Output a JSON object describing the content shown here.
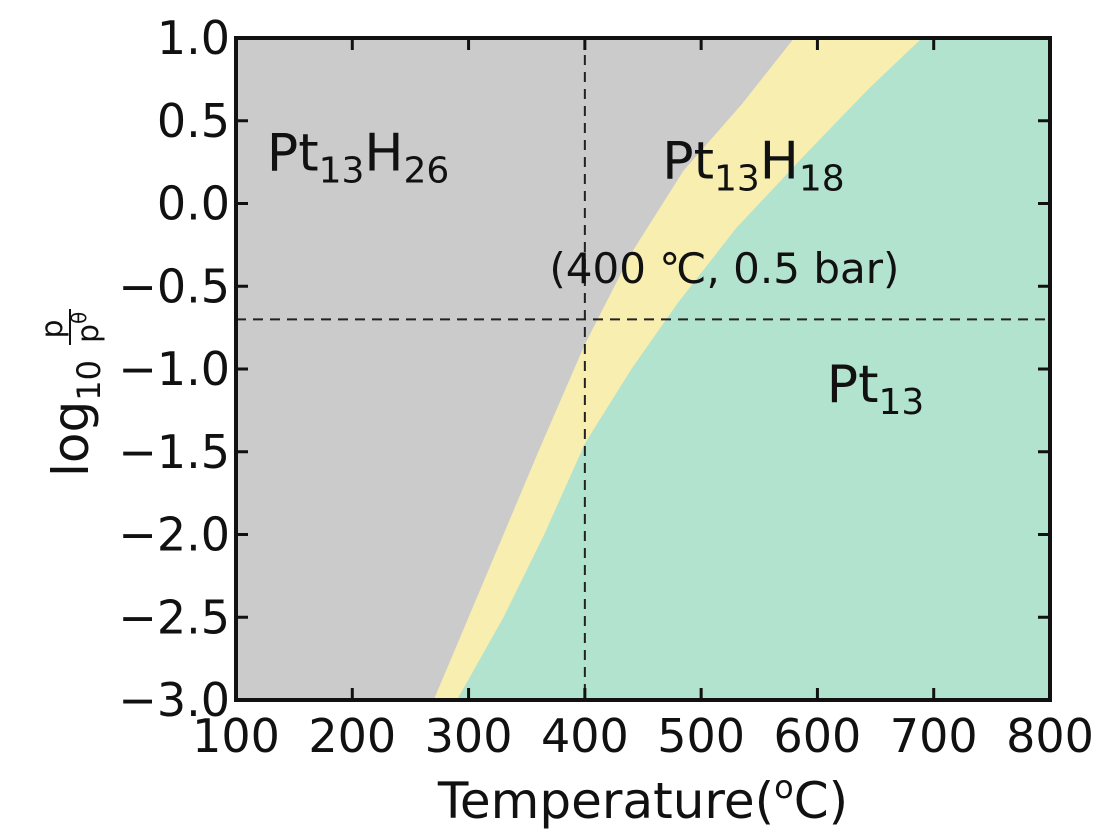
{
  "chart_data": {
    "type": "area",
    "xlabel_main": "Temperature(",
    "xlabel_sup": "o",
    "xlabel_end": "C)",
    "ylabel": {
      "prefix": "log",
      "sub": "10",
      "num": "p",
      "den": "p",
      "den_sup": "θ"
    },
    "xlim": [
      100,
      800
    ],
    "ylim": [
      -3.0,
      1.0
    ],
    "x_ticks": [
      100,
      200,
      300,
      400,
      500,
      600,
      700,
      800
    ],
    "x_tick_labels": [
      "100",
      "200",
      "300",
      "400",
      "500",
      "600",
      "700",
      "800"
    ],
    "y_ticks": [
      1.0,
      0.5,
      0.0,
      -0.5,
      -1.0,
      -1.5,
      -2.0,
      -2.5,
      -3.0
    ],
    "y_tick_labels": [
      "1.0",
      "0.5",
      "0.0",
      "−0.5",
      "−1.0",
      "−1.5",
      "−2.0",
      "−2.5",
      "−3.0"
    ],
    "grid": false,
    "regions": [
      {
        "name": "Pt13H26",
        "color": "#cbcbcb",
        "label": {
          "base": "Pt",
          "sub1": "13",
          "mid": "H",
          "sub2": "26"
        },
        "label_at": [
          205,
          0.2
        ]
      },
      {
        "name": "Pt13H18",
        "color": "#f8eeb0",
        "label": {
          "base": "Pt",
          "sub1": "13",
          "mid": "H",
          "sub2": "18"
        },
        "label_at": [
          545,
          0.15
        ]
      },
      {
        "name": "Pt13",
        "color": "#b2e3cf",
        "label": {
          "base": "Pt",
          "sub1": "13",
          "mid": "",
          "sub2": ""
        },
        "label_at": [
          650,
          -1.2
        ]
      }
    ],
    "boundaries": [
      {
        "between": [
          "Pt13H26",
          "Pt13H18"
        ],
        "points": [
          [
            270,
            -3.0
          ],
          [
            300,
            -2.5
          ],
          [
            330,
            -2.0
          ],
          [
            360,
            -1.5
          ],
          [
            400,
            -0.85
          ],
          [
            440,
            -0.3
          ],
          [
            485,
            0.2
          ],
          [
            535,
            0.6
          ],
          [
            580,
            1.0
          ]
        ]
      },
      {
        "between": [
          "Pt13H18",
          "Pt13"
        ],
        "points": [
          [
            290,
            -3.0
          ],
          [
            330,
            -2.5
          ],
          [
            365,
            -2.0
          ],
          [
            400,
            -1.45
          ],
          [
            440,
            -1.0
          ],
          [
            480,
            -0.6
          ],
          [
            530,
            -0.15
          ],
          [
            590,
            0.3
          ],
          [
            645,
            0.7
          ],
          [
            690,
            1.0
          ]
        ]
      }
    ],
    "guides": {
      "x": 400,
      "y": -0.7
    },
    "annotation": {
      "text": "(400 ℃, 0.5 bar)",
      "at": [
        520,
        -0.48
      ]
    }
  }
}
